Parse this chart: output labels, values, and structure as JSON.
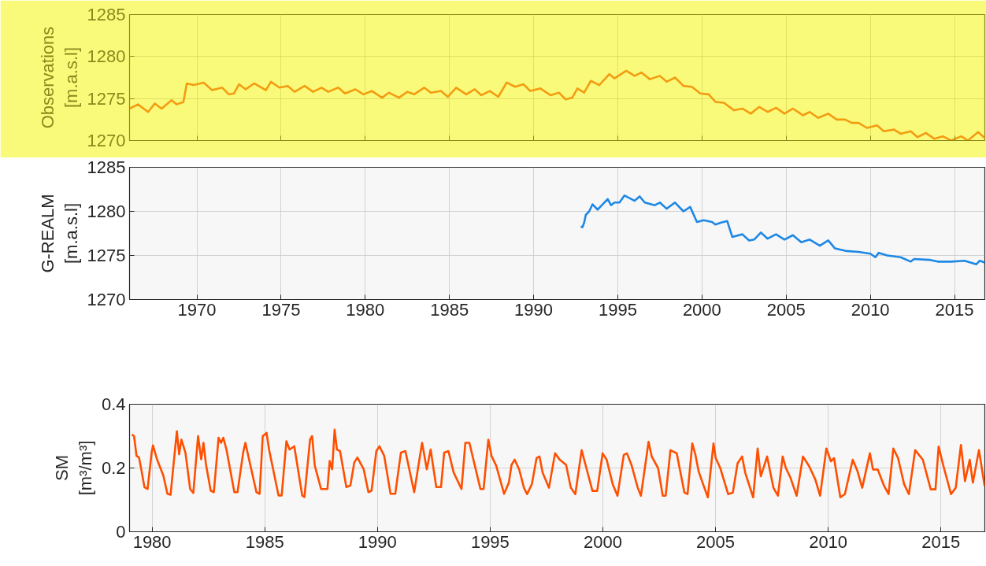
{
  "chart_data": [
    {
      "type": "line",
      "ylabel": "Observations\n[m.a.s.l]",
      "xlim": [
        1966,
        2016.8
      ],
      "ylim": [
        1270,
        1285
      ],
      "yticks": [
        1270,
        1275,
        1280,
        1285
      ],
      "grid": true,
      "tick_labels": "y",
      "series": [
        {
          "color": "#f39c12",
          "x": [
            1966.0,
            1966.5,
            1967.1,
            1967.5,
            1967.9,
            1968.5,
            1968.8,
            1969.2,
            1969.4,
            1969.8,
            1970.4,
            1970.9,
            1971.5,
            1971.9,
            1972.2,
            1972.5,
            1972.9,
            1973.4,
            1974.1,
            1974.4,
            1974.9,
            1975.4,
            1975.8,
            1976.4,
            1976.9,
            1977.4,
            1977.8,
            1978.4,
            1978.8,
            1979.4,
            1979.9,
            1980.4,
            1981.0,
            1981.4,
            1982.0,
            1982.5,
            1982.9,
            1983.5,
            1983.9,
            1984.5,
            1984.9,
            1985.4,
            1986.0,
            1986.5,
            1986.9,
            1987.4,
            1987.9,
            1988.4,
            1988.9,
            1989.4,
            1989.8,
            1990.4,
            1991.0,
            1991.5,
            1991.9,
            1992.3,
            1992.6,
            1993.0,
            1993.4,
            1993.9,
            1994.5,
            1994.8,
            1995.5,
            1996.0,
            1996.4,
            1996.9,
            1997.5,
            1997.9,
            1998.4,
            1998.9,
            1999.4,
            1999.9,
            2000.4,
            2000.8,
            2001.3,
            2001.9,
            2002.4,
            2002.9,
            2003.4,
            2003.9,
            2004.4,
            2004.9,
            2005.4,
            2006.0,
            2006.4,
            2006.9,
            2007.5,
            2008.0,
            2008.5,
            2008.9,
            2009.3,
            2009.8,
            2010.4,
            2010.8,
            2011.4,
            2011.8,
            2012.4,
            2012.8,
            2013.3,
            2013.8,
            2014.3,
            2014.8,
            2015.4,
            2015.8,
            2016.4,
            2016.8
          ],
          "values": [
            1273.8,
            1274.3,
            1273.4,
            1274.4,
            1273.8,
            1274.8,
            1274.3,
            1274.6,
            1276.8,
            1276.6,
            1276.9,
            1276.0,
            1276.3,
            1275.5,
            1275.6,
            1276.7,
            1276.1,
            1276.8,
            1276.0,
            1277.0,
            1276.3,
            1276.5,
            1275.8,
            1276.5,
            1275.8,
            1276.3,
            1275.8,
            1276.3,
            1275.6,
            1276.1,
            1275.5,
            1275.9,
            1275.1,
            1275.7,
            1275.1,
            1275.8,
            1275.5,
            1276.3,
            1275.7,
            1275.9,
            1275.2,
            1276.3,
            1275.5,
            1276.1,
            1275.4,
            1275.9,
            1275.2,
            1276.9,
            1276.4,
            1276.7,
            1275.9,
            1276.2,
            1275.4,
            1275.7,
            1274.9,
            1275.1,
            1276.2,
            1275.7,
            1277.1,
            1276.6,
            1277.9,
            1277.4,
            1278.3,
            1277.7,
            1278.1,
            1277.3,
            1277.7,
            1277.0,
            1277.5,
            1276.5,
            1276.4,
            1275.6,
            1275.5,
            1274.6,
            1274.5,
            1273.6,
            1273.8,
            1273.2,
            1274.0,
            1273.4,
            1273.9,
            1273.2,
            1273.8,
            1273.0,
            1273.4,
            1272.7,
            1273.2,
            1272.5,
            1272.5,
            1272.1,
            1272.1,
            1271.5,
            1271.8,
            1271.1,
            1271.3,
            1270.8,
            1271.1,
            1270.4,
            1270.9,
            1270.2,
            1270.5,
            1270.0,
            1270.5,
            1270.0,
            1271.0,
            1270.3
          ]
        }
      ]
    },
    {
      "type": "line",
      "ylabel": "G-REALM\n[m.a.s.l]",
      "xlim": [
        1966,
        2016.8
      ],
      "ylim": [
        1270,
        1285
      ],
      "xticks": [
        1970,
        1975,
        1980,
        1985,
        1990,
        1995,
        2000,
        2005,
        2010,
        2015
      ],
      "yticks": [
        1270,
        1275,
        1280,
        1285
      ],
      "grid": true,
      "series": [
        {
          "color": "#1e88e5",
          "x": [
            1992.8,
            1992.9,
            1993.0,
            1993.1,
            1993.3,
            1993.5,
            1993.8,
            1994.1,
            1994.4,
            1994.6,
            1994.8,
            1995.1,
            1995.4,
            1996.0,
            1996.3,
            1996.6,
            1997.2,
            1997.5,
            1997.9,
            1998.4,
            1998.9,
            1999.3,
            1999.7,
            2000.1,
            2000.6,
            2000.8,
            2001.1,
            2001.5,
            2001.8,
            2002.4,
            2002.8,
            2003.1,
            2003.5,
            2003.9,
            2004.4,
            2004.9,
            2005.4,
            2005.9,
            2006.4,
            2007.0,
            2007.5,
            2007.9,
            2008.6,
            2009.3,
            2010.0,
            2010.3,
            2010.5,
            2011.0,
            2011.8,
            2012.4,
            2012.6,
            2013.5,
            2014.0,
            2014.8,
            2015.6,
            2016.3,
            2016.5,
            2016.8
          ],
          "values": [
            1278.3,
            1278.2,
            1278.7,
            1279.6,
            1280.0,
            1280.8,
            1280.2,
            1280.8,
            1281.4,
            1280.7,
            1281.0,
            1281.0,
            1281.8,
            1281.2,
            1281.7,
            1281.0,
            1280.7,
            1281.0,
            1280.3,
            1281.0,
            1280.0,
            1280.5,
            1278.8,
            1279.0,
            1278.8,
            1278.5,
            1278.7,
            1278.9,
            1277.1,
            1277.4,
            1276.7,
            1276.8,
            1277.6,
            1276.9,
            1277.4,
            1276.8,
            1277.3,
            1276.5,
            1276.8,
            1276.1,
            1276.7,
            1275.8,
            1275.5,
            1275.4,
            1275.2,
            1274.8,
            1275.3,
            1275.0,
            1274.8,
            1274.3,
            1274.6,
            1274.5,
            1274.3,
            1274.3,
            1274.4,
            1274.0,
            1274.4,
            1274.2
          ]
        }
      ]
    },
    {
      "type": "line",
      "ylabel": "SM\n[m³/m³]",
      "xlim": [
        1979,
        2016.95
      ],
      "ylim": [
        0,
        0.4
      ],
      "xticks": [
        1980,
        1985,
        1990,
        1995,
        2000,
        2005,
        2010,
        2015
      ],
      "yticks": [
        0,
        0.2,
        0.4
      ],
      "grid": true,
      "series": [
        {
          "color": "#ff4f00",
          "x": [
            1979.1,
            1979.2,
            1979.31,
            1979.42,
            1979.52,
            1979.66,
            1979.8,
            1979.98,
            1980.04,
            1980.22,
            1980.5,
            1980.68,
            1980.82,
            1980.99,
            1981.1,
            1981.2,
            1981.3,
            1981.48,
            1981.69,
            1981.83,
            1982.04,
            1982.18,
            1982.28,
            1982.39,
            1982.6,
            1982.74,
            1982.95,
            1983.06,
            1983.16,
            1983.3,
            1983.65,
            1983.79,
            1984.04,
            1984.14,
            1984.35,
            1984.63,
            1984.77,
            1984.91,
            1985.08,
            1985.19,
            1985.61,
            1985.75,
            1985.96,
            1986.1,
            1986.31,
            1986.66,
            1986.76,
            1987.01,
            1987.1,
            1987.22,
            1987.5,
            1987.78,
            1987.88,
            1987.99,
            1988.1,
            1988.2,
            1988.34,
            1988.62,
            1988.8,
            1988.97,
            1989.11,
            1989.39,
            1989.6,
            1989.74,
            1989.95,
            1990.09,
            1990.3,
            1990.58,
            1990.79,
            1991.04,
            1991.24,
            1991.63,
            1991.98,
            1992.19,
            1992.36,
            1992.61,
            1992.82,
            1992.96,
            1993.15,
            1993.38,
            1993.73,
            1993.9,
            1994.08,
            1994.36,
            1994.57,
            1994.71,
            1994.92,
            1995.06,
            1995.27,
            1995.62,
            1995.83,
            1995.95,
            1996.09,
            1996.29,
            1996.5,
            1996.64,
            1996.85,
            1997.06,
            1997.19,
            1997.33,
            1997.61,
            1997.88,
            1998.09,
            1998.37,
            1998.58,
            1998.78,
            1999.06,
            1999.27,
            1999.54,
            1999.75,
            1999.99,
            2000.17,
            2000.44,
            2000.65,
            2000.93,
            2001.07,
            2001.27,
            2001.55,
            2001.69,
            2002.03,
            2002.17,
            2002.45,
            2002.66,
            2002.79,
            2003.0,
            2003.28,
            2003.42,
            2003.62,
            2003.76,
            2003.97,
            2004.11,
            2004.25,
            2004.45,
            2004.66,
            2004.91,
            2005.01,
            2005.21,
            2005.56,
            2005.77,
            2005.98,
            2006.18,
            2006.32,
            2006.67,
            2006.87,
            2007.01,
            2007.29,
            2007.57,
            2007.77,
            2007.98,
            2008.12,
            2008.33,
            2008.6,
            2008.88,
            2009.16,
            2009.43,
            2009.64,
            2009.92,
            2010.12,
            2010.26,
            2010.54,
            2010.74,
            2011.09,
            2011.3,
            2011.51,
            2011.85,
            2011.99,
            2012.2,
            2012.48,
            2012.68,
            2012.89,
            2013.1,
            2013.37,
            2013.58,
            2013.86,
            2014.2,
            2014.55,
            2014.76,
            2014.9,
            2015.1,
            2015.45,
            2015.66,
            2015.89,
            2016.07,
            2016.28,
            2016.42,
            2016.69,
            2016.94
          ],
          "values": [
            0.305,
            0.3,
            0.238,
            0.233,
            0.196,
            0.14,
            0.134,
            0.248,
            0.271,
            0.227,
            0.176,
            0.119,
            0.116,
            0.238,
            0.315,
            0.243,
            0.289,
            0.248,
            0.134,
            0.122,
            0.3,
            0.227,
            0.279,
            0.212,
            0.129,
            0.124,
            0.295,
            0.279,
            0.295,
            0.258,
            0.124,
            0.124,
            0.248,
            0.279,
            0.212,
            0.124,
            0.119,
            0.3,
            0.31,
            0.258,
            0.114,
            0.114,
            0.284,
            0.258,
            0.268,
            0.114,
            0.109,
            0.289,
            0.3,
            0.207,
            0.134,
            0.134,
            0.222,
            0.196,
            0.32,
            0.258,
            0.253,
            0.14,
            0.145,
            0.217,
            0.233,
            0.196,
            0.124,
            0.129,
            0.253,
            0.268,
            0.238,
            0.119,
            0.119,
            0.248,
            0.253,
            0.124,
            0.279,
            0.196,
            0.258,
            0.14,
            0.14,
            0.248,
            0.253,
            0.186,
            0.134,
            0.279,
            0.279,
            0.196,
            0.134,
            0.134,
            0.289,
            0.238,
            0.207,
            0.119,
            0.154,
            0.21,
            0.226,
            0.195,
            0.138,
            0.118,
            0.149,
            0.231,
            0.236,
            0.185,
            0.138,
            0.246,
            0.226,
            0.21,
            0.138,
            0.118,
            0.256,
            0.2,
            0.128,
            0.128,
            0.246,
            0.226,
            0.149,
            0.113,
            0.241,
            0.246,
            0.21,
            0.138,
            0.113,
            0.282,
            0.236,
            0.2,
            0.113,
            0.113,
            0.256,
            0.246,
            0.195,
            0.123,
            0.118,
            0.277,
            0.241,
            0.19,
            0.149,
            0.108,
            0.277,
            0.231,
            0.2,
            0.118,
            0.123,
            0.215,
            0.236,
            0.185,
            0.108,
            0.261,
            0.174,
            0.236,
            0.138,
            0.113,
            0.236,
            0.2,
            0.169,
            0.113,
            0.236,
            0.205,
            0.164,
            0.113,
            0.261,
            0.221,
            0.231,
            0.108,
            0.118,
            0.226,
            0.19,
            0.138,
            0.246,
            0.195,
            0.195,
            0.144,
            0.118,
            0.261,
            0.231,
            0.149,
            0.118,
            0.256,
            0.226,
            0.133,
            0.133,
            0.267,
            0.21,
            0.118,
            0.138,
            0.272,
            0.159,
            0.226,
            0.154,
            0.256,
            0.144
          ]
        }
      ]
    }
  ]
}
